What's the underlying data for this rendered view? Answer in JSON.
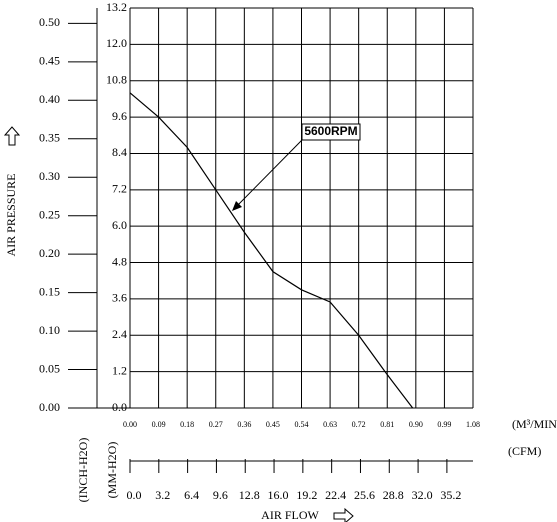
{
  "chart_data": {
    "type": "line",
    "y_label": "AIR PRESSURE",
    "x_label": "AIR FLOW",
    "x_unit": "(M³/MIN)",
    "x2_unit": "(CFM)",
    "y_unit": "(MM-H2O)",
    "y2_unit": "(INCH-H2O)",
    "x": [
      0,
      0.09,
      0.18,
      0.27,
      0.36,
      0.45,
      0.54,
      0.63,
      0.72,
      0.81,
      0.89
    ],
    "series": [
      {
        "name": "5600RPM",
        "color": "#000000",
        "values": [
          10.4,
          9.6,
          8.6,
          7.2,
          5.8,
          4.5,
          3.9,
          3.5,
          2.4,
          1.1,
          0
        ]
      }
    ],
    "xlim": [
      0,
      1.08
    ],
    "xticks": [
      {
        "value": 0,
        "label": "0.00"
      },
      0.09,
      0.18,
      0.27,
      0.36,
      0.45,
      0.54,
      0.63,
      0.72,
      0.81,
      {
        "value": 0.9,
        "label": "0.90"
      },
      0.99,
      1.08
    ],
    "ylim": [
      0,
      13.2
    ],
    "yticks": [
      {
        "value": 0,
        "label": "0.0"
      },
      1.2,
      2.4,
      3.6,
      4.8,
      {
        "value": 6,
        "label": "6.0"
      },
      7.2,
      8.4,
      9.6,
      10.8,
      {
        "value": 12,
        "label": "12.0"
      },
      13.2
    ],
    "y2lim": [
      0,
      0.52
    ],
    "y2ticks": [
      {
        "value": 0,
        "label": "0.00"
      },
      0.05,
      {
        "value": 0.1,
        "label": "0.10"
      },
      0.15,
      {
        "value": 0.2,
        "label": "0.20"
      },
      0.25,
      {
        "value": 0.3,
        "label": "0.30"
      },
      0.35,
      {
        "value": 0.4,
        "label": "0.40"
      },
      0.45,
      {
        "value": 0.5,
        "label": "0.50"
      }
    ],
    "x2lim": [
      0,
      38.1
    ],
    "x2ticks": [
      {
        "value": 0,
        "label": "0.0"
      },
      3.2,
      6.4,
      9.6,
      12.8,
      {
        "value": 16,
        "label": "16.0"
      },
      19.2,
      22.4,
      25.6,
      28.8,
      {
        "value": 32,
        "label": "32.0"
      },
      35.2
    ],
    "grid": true
  }
}
